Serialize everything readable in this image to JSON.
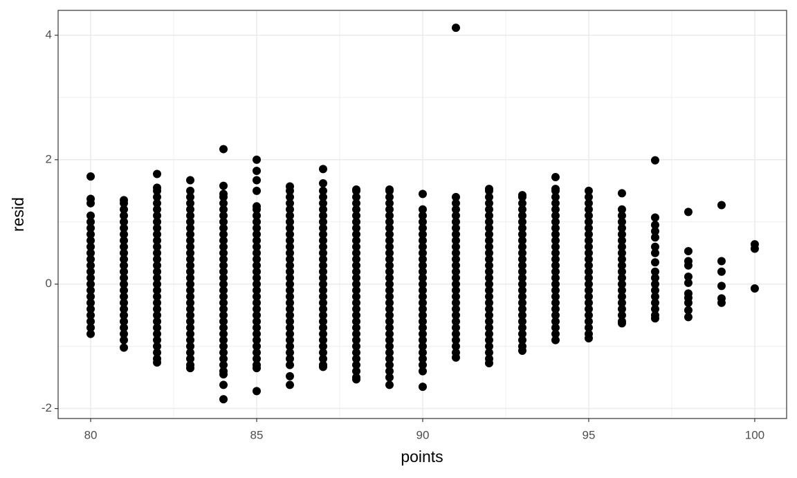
{
  "chart_data": {
    "type": "scatter",
    "x_label": "points",
    "y_label": "resid",
    "color": "#000000",
    "grid": true,
    "xlim": [
      79.02,
      100.96
    ],
    "ylim": [
      -2.16,
      4.4
    ],
    "xticks": [
      80,
      85,
      90,
      95,
      100
    ],
    "yticks": [
      -2,
      0,
      2,
      4
    ],
    "x": [
      80,
      80,
      80,
      80,
      80,
      80,
      80,
      80,
      80,
      80,
      80,
      80,
      80,
      80,
      80,
      80,
      80,
      80,
      80,
      80,
      80,
      80,
      80,
      81,
      81,
      81,
      81,
      81,
      81,
      81,
      81,
      81,
      81,
      81,
      81,
      81,
      81,
      81,
      81,
      81,
      81,
      81,
      81,
      81,
      81,
      81,
      81,
      81,
      82,
      82,
      82,
      82,
      82,
      82,
      82,
      82,
      82,
      82,
      82,
      82,
      82,
      82,
      82,
      82,
      82,
      82,
      82,
      82,
      82,
      82,
      82,
      82,
      82,
      82,
      82,
      82,
      82,
      82,
      82,
      83,
      83,
      83,
      83,
      83,
      83,
      83,
      83,
      83,
      83,
      83,
      83,
      83,
      83,
      83,
      83,
      83,
      83,
      83,
      83,
      83,
      83,
      83,
      83,
      83,
      83,
      83,
      83,
      83,
      83,
      83,
      84,
      84,
      84,
      84,
      84,
      84,
      84,
      84,
      84,
      84,
      84,
      84,
      84,
      84,
      84,
      84,
      84,
      84,
      84,
      84,
      84,
      84,
      84,
      84,
      84,
      84,
      84,
      84,
      84,
      84,
      84,
      84,
      84,
      84,
      84,
      85,
      85,
      85,
      85,
      85,
      85,
      85,
      85,
      85,
      85,
      85,
      85,
      85,
      85,
      85,
      85,
      85,
      85,
      85,
      85,
      85,
      85,
      85,
      85,
      85,
      85,
      85,
      85,
      85,
      85,
      85,
      85,
      85,
      86,
      86,
      86,
      86,
      86,
      86,
      86,
      86,
      86,
      86,
      86,
      86,
      86,
      86,
      86,
      86,
      86,
      86,
      86,
      86,
      86,
      86,
      86,
      86,
      86,
      86,
      86,
      86,
      86,
      86,
      86,
      86,
      87,
      87,
      87,
      87,
      87,
      87,
      87,
      87,
      87,
      87,
      87,
      87,
      87,
      87,
      87,
      87,
      87,
      87,
      87,
      87,
      87,
      87,
      87,
      87,
      87,
      87,
      87,
      87,
      87,
      87,
      87,
      87,
      88,
      88,
      88,
      88,
      88,
      88,
      88,
      88,
      88,
      88,
      88,
      88,
      88,
      88,
      88,
      88,
      88,
      88,
      88,
      88,
      88,
      88,
      88,
      88,
      88,
      88,
      88,
      88,
      88,
      88,
      88,
      88,
      88,
      89,
      89,
      89,
      89,
      89,
      89,
      89,
      89,
      89,
      89,
      89,
      89,
      89,
      89,
      89,
      89,
      89,
      89,
      89,
      89,
      89,
      89,
      89,
      89,
      89,
      89,
      89,
      89,
      89,
      89,
      89,
      89,
      89,
      90,
      90,
      90,
      90,
      90,
      90,
      90,
      90,
      90,
      90,
      90,
      90,
      90,
      90,
      90,
      90,
      90,
      90,
      90,
      90,
      90,
      90,
      90,
      90,
      90,
      90,
      90,
      90,
      90,
      91,
      91,
      91,
      91,
      91,
      91,
      91,
      91,
      91,
      91,
      91,
      91,
      91,
      91,
      91,
      91,
      91,
      91,
      91,
      91,
      91,
      91,
      91,
      91,
      91,
      91,
      91,
      91,
      92,
      92,
      92,
      92,
      92,
      92,
      92,
      92,
      92,
      92,
      92,
      92,
      92,
      92,
      92,
      92,
      92,
      92,
      92,
      92,
      92,
      92,
      92,
      92,
      92,
      92,
      92,
      92,
      92,
      92,
      93,
      93,
      93,
      93,
      93,
      93,
      93,
      93,
      93,
      93,
      93,
      93,
      93,
      93,
      93,
      93,
      93,
      93,
      93,
      93,
      93,
      93,
      93,
      93,
      93,
      93,
      93,
      94,
      94,
      94,
      94,
      94,
      94,
      94,
      94,
      94,
      94,
      94,
      94,
      94,
      94,
      94,
      94,
      94,
      94,
      94,
      94,
      94,
      94,
      94,
      94,
      94,
      94,
      94,
      95,
      95,
      95,
      95,
      95,
      95,
      95,
      95,
      95,
      95,
      95,
      95,
      95,
      95,
      95,
      95,
      95,
      95,
      95,
      95,
      95,
      95,
      95,
      95,
      95,
      96,
      96,
      96,
      96,
      96,
      96,
      96,
      96,
      96,
      96,
      96,
      96,
      96,
      96,
      96,
      96,
      96,
      96,
      96,
      96,
      96,
      97,
      97,
      97,
      97,
      97,
      97,
      97,
      97,
      97,
      97,
      97,
      97,
      97,
      97,
      97,
      97,
      97,
      98,
      98,
      98,
      98,
      98,
      98,
      98,
      98,
      98,
      98,
      98,
      99,
      99,
      99,
      99,
      99,
      99,
      100,
      100,
      100
    ],
    "y": [
      -0.8,
      -0.7,
      -0.6,
      -0.5,
      -0.4,
      -0.3,
      -0.2,
      -0.1,
      0,
      0.1,
      0.2,
      0.3,
      0.4,
      0.5,
      0.6,
      0.7,
      0.8,
      0.9,
      1,
      1.1,
      1.3,
      1.37,
      1.73,
      -1.02,
      -0.9,
      -0.8,
      -0.7,
      -0.6,
      -0.5,
      -0.4,
      -0.3,
      -0.2,
      -0.1,
      0,
      0.1,
      0.2,
      0.3,
      0.4,
      0.5,
      0.6,
      0.7,
      0.8,
      0.9,
      1,
      1.1,
      1.2,
      1.3,
      1.35,
      -1.26,
      -1.2,
      -1.1,
      -1,
      -0.9,
      -0.8,
      -0.7,
      -0.6,
      -0.5,
      -0.4,
      -0.3,
      -0.2,
      -0.1,
      0,
      0.1,
      0.2,
      0.3,
      0.4,
      0.5,
      0.6,
      0.7,
      0.8,
      0.9,
      1,
      1.1,
      1.2,
      1.3,
      1.4,
      1.5,
      1.55,
      1.77,
      -1.35,
      -1.3,
      -1.2,
      -1.1,
      -1,
      -0.9,
      -0.8,
      -0.7,
      -0.6,
      -0.5,
      -0.4,
      -0.3,
      -0.2,
      -0.1,
      0,
      0.1,
      0.2,
      0.3,
      0.4,
      0.5,
      0.6,
      0.7,
      0.8,
      0.9,
      1,
      1.1,
      1.2,
      1.3,
      1.4,
      1.5,
      1.67,
      -1.85,
      -1.62,
      -1.45,
      -1.4,
      -1.3,
      -1.2,
      -1.1,
      -1,
      -0.9,
      -0.8,
      -0.7,
      -0.6,
      -0.5,
      -0.4,
      -0.3,
      -0.2,
      -0.1,
      0,
      0.1,
      0.2,
      0.3,
      0.4,
      0.5,
      0.6,
      0.7,
      0.8,
      0.9,
      1,
      1.1,
      1.2,
      1.3,
      1.4,
      1.45,
      1.58,
      2.17,
      -1.72,
      -1.35,
      -1.3,
      -1.2,
      -1.1,
      -1,
      -0.9,
      -0.8,
      -0.7,
      -0.6,
      -0.5,
      -0.4,
      -0.3,
      -0.2,
      -0.1,
      0,
      0.1,
      0.2,
      0.3,
      0.4,
      0.5,
      0.6,
      0.7,
      0.8,
      0.9,
      1,
      1.1,
      1.2,
      1.25,
      1.5,
      1.67,
      1.82,
      2,
      -1.62,
      -1.48,
      -1.3,
      -1.2,
      -1.1,
      -1,
      -0.9,
      -0.8,
      -0.7,
      -0.6,
      -0.5,
      -0.4,
      -0.3,
      -0.2,
      -0.1,
      0,
      0.1,
      0.2,
      0.3,
      0.4,
      0.5,
      0.6,
      0.7,
      0.8,
      0.9,
      1,
      1.1,
      1.2,
      1.3,
      1.4,
      1.5,
      1.57,
      -1.33,
      -1.3,
      -1.2,
      -1.1,
      -1,
      -0.9,
      -0.8,
      -0.7,
      -0.6,
      -0.5,
      -0.4,
      -0.3,
      -0.2,
      -0.1,
      0,
      0.1,
      0.2,
      0.3,
      0.4,
      0.5,
      0.6,
      0.7,
      0.8,
      0.9,
      1,
      1.1,
      1.2,
      1.3,
      1.4,
      1.5,
      1.62,
      1.85,
      -1.53,
      -1.5,
      -1.4,
      -1.3,
      -1.2,
      -1.1,
      -1,
      -0.9,
      -0.8,
      -0.7,
      -0.6,
      -0.5,
      -0.4,
      -0.3,
      -0.2,
      -0.1,
      0,
      0.1,
      0.2,
      0.3,
      0.4,
      0.5,
      0.6,
      0.7,
      0.8,
      0.9,
      1,
      1.1,
      1.2,
      1.3,
      1.4,
      1.5,
      1.52,
      -1.62,
      -1.5,
      -1.4,
      -1.3,
      -1.2,
      -1.1,
      -1,
      -0.9,
      -0.8,
      -0.7,
      -0.6,
      -0.5,
      -0.4,
      -0.3,
      -0.2,
      -0.1,
      0,
      0.1,
      0.2,
      0.3,
      0.4,
      0.5,
      0.6,
      0.7,
      0.8,
      0.9,
      1,
      1.1,
      1.2,
      1.3,
      1.4,
      1.5,
      1.52,
      -1.65,
      -1.4,
      -1.3,
      -1.2,
      -1.1,
      -1,
      -0.9,
      -0.8,
      -0.7,
      -0.6,
      -0.5,
      -0.4,
      -0.3,
      -0.2,
      -0.1,
      0,
      0.1,
      0.2,
      0.3,
      0.4,
      0.5,
      0.6,
      0.7,
      0.8,
      0.9,
      1,
      1.1,
      1.2,
      1.45,
      -1.18,
      -1.1,
      -1,
      -0.9,
      -0.8,
      -0.7,
      -0.6,
      -0.5,
      -0.4,
      -0.3,
      -0.2,
      -0.1,
      0,
      0.1,
      0.2,
      0.3,
      0.4,
      0.5,
      0.6,
      0.7,
      0.8,
      0.9,
      1,
      1.1,
      1.2,
      1.3,
      1.4,
      4.12,
      -1.27,
      -1.2,
      -1.1,
      -1,
      -0.9,
      -0.8,
      -0.7,
      -0.6,
      -0.5,
      -0.4,
      -0.3,
      -0.2,
      -0.1,
      0,
      0.1,
      0.2,
      0.3,
      0.4,
      0.5,
      0.6,
      0.7,
      0.8,
      0.9,
      1,
      1.1,
      1.2,
      1.3,
      1.4,
      1.5,
      1.53,
      -1.07,
      -1,
      -0.9,
      -0.8,
      -0.7,
      -0.6,
      -0.5,
      -0.4,
      -0.3,
      -0.2,
      -0.1,
      0,
      0.1,
      0.2,
      0.3,
      0.4,
      0.5,
      0.6,
      0.7,
      0.8,
      0.9,
      1,
      1.1,
      1.2,
      1.3,
      1.4,
      1.43,
      -0.9,
      -0.8,
      -0.7,
      -0.6,
      -0.5,
      -0.4,
      -0.3,
      -0.2,
      -0.1,
      0,
      0.1,
      0.2,
      0.3,
      0.4,
      0.5,
      0.6,
      0.7,
      0.8,
      0.9,
      1,
      1.1,
      1.2,
      1.3,
      1.4,
      1.5,
      1.53,
      1.72,
      -0.87,
      -0.8,
      -0.7,
      -0.6,
      -0.5,
      -0.4,
      -0.3,
      -0.2,
      -0.1,
      0,
      0.1,
      0.2,
      0.3,
      0.4,
      0.5,
      0.6,
      0.7,
      0.8,
      0.9,
      1,
      1.1,
      1.2,
      1.3,
      1.4,
      1.5,
      -0.63,
      -0.6,
      -0.5,
      -0.4,
      -0.3,
      -0.2,
      -0.1,
      0,
      0.1,
      0.2,
      0.3,
      0.4,
      0.5,
      0.6,
      0.7,
      0.8,
      0.9,
      1,
      1.1,
      1.2,
      1.46,
      -0.55,
      -0.5,
      -0.4,
      -0.3,
      -0.2,
      -0.1,
      0,
      0.1,
      0.2,
      0.35,
      0.5,
      0.6,
      0.75,
      0.85,
      0.95,
      1.07,
      1.99,
      -0.53,
      -0.42,
      -0.3,
      -0.22,
      -0.15,
      0.02,
      0.12,
      0.3,
      0.37,
      0.53,
      1.16,
      -0.3,
      -0.23,
      -0.03,
      0.2,
      0.37,
      1.27,
      -0.07,
      0.57,
      0.64
    ]
  }
}
